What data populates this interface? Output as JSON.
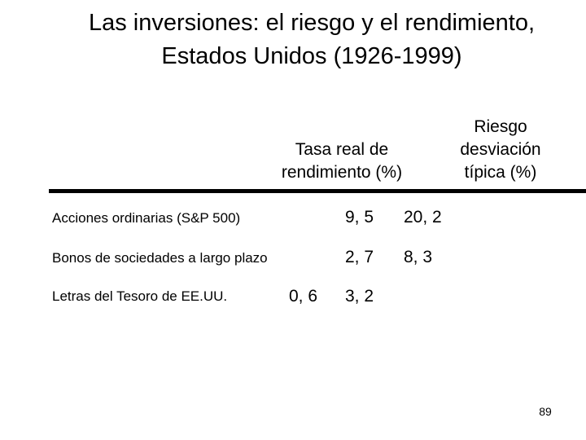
{
  "title": {
    "line1": "Las inversiones: el riesgo y el rendimiento,",
    "line2": "Estados Unidos (1926-1999)"
  },
  "table": {
    "columns": [
      {
        "lines": [
          "Tasa real de",
          "rendimiento (%)"
        ]
      },
      {
        "lines": [
          "Riesgo",
          "desviación",
          "típica (%)"
        ]
      }
    ],
    "rows": [
      {
        "label": "Acciones ordinarias (S&P 500)",
        "rendimiento": "9, 5",
        "riesgo": "20, 2"
      },
      {
        "label": "Bonos de sociedades a largo plazo",
        "rendimiento": "2, 7",
        "riesgo": "8, 3"
      },
      {
        "label": "Letras del Tesoro de EE.UU.",
        "rendimiento": "0, 6",
        "riesgo": "3, 2"
      }
    ]
  },
  "page_number": "89"
}
